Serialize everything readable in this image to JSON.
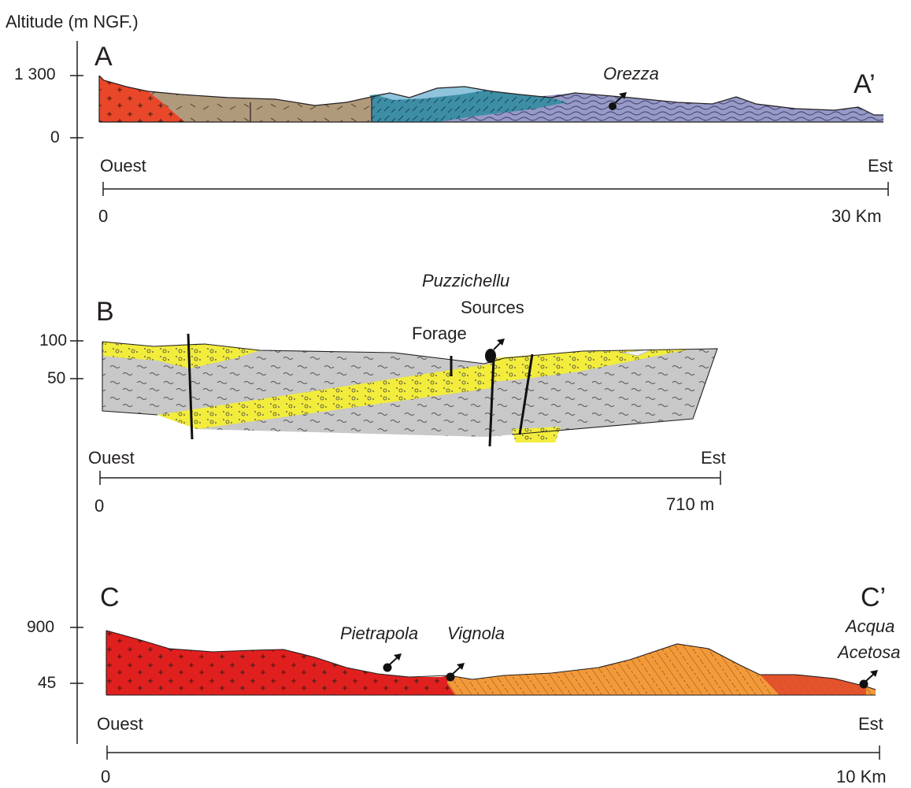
{
  "y_axis_title": "Altitude (m NGF.)",
  "sections": [
    {
      "id": "A",
      "label_start": "A",
      "label_end": "A’",
      "ticks": [
        "1 300",
        "0"
      ],
      "west": "Ouest",
      "east": "Est",
      "scale_start": "0",
      "scale_end": "30 Km",
      "springs": [
        "Orezza"
      ],
      "colors": {
        "granite": "#e8472a",
        "brown": "#b09a7c",
        "teal": "#3d8ea5",
        "lightblue": "#8fc4dc",
        "purple": "#9799c6"
      }
    },
    {
      "id": "B",
      "label_start": "B",
      "ticks": [
        "100",
        "50"
      ],
      "west": "Ouest",
      "east": "Est",
      "scale_start": "0",
      "scale_end": "710 m",
      "springs": [
        "Puzzichellu",
        "Sources",
        "Forage"
      ],
      "colors": {
        "sand": "#f2ec3c",
        "grey": "#c8c8c8"
      }
    },
    {
      "id": "C",
      "label_start": "C",
      "label_end": "C’",
      "ticks": [
        "900",
        "45"
      ],
      "west": "Ouest",
      "east": "Est",
      "scale_start": "0",
      "scale_end": "10 Km",
      "springs": [
        "Pietrapola",
        "Vignola",
        "Acqua",
        "Acetosa"
      ],
      "colors": {
        "granite": "#e0201f",
        "orange": "#f29a3a"
      }
    }
  ]
}
